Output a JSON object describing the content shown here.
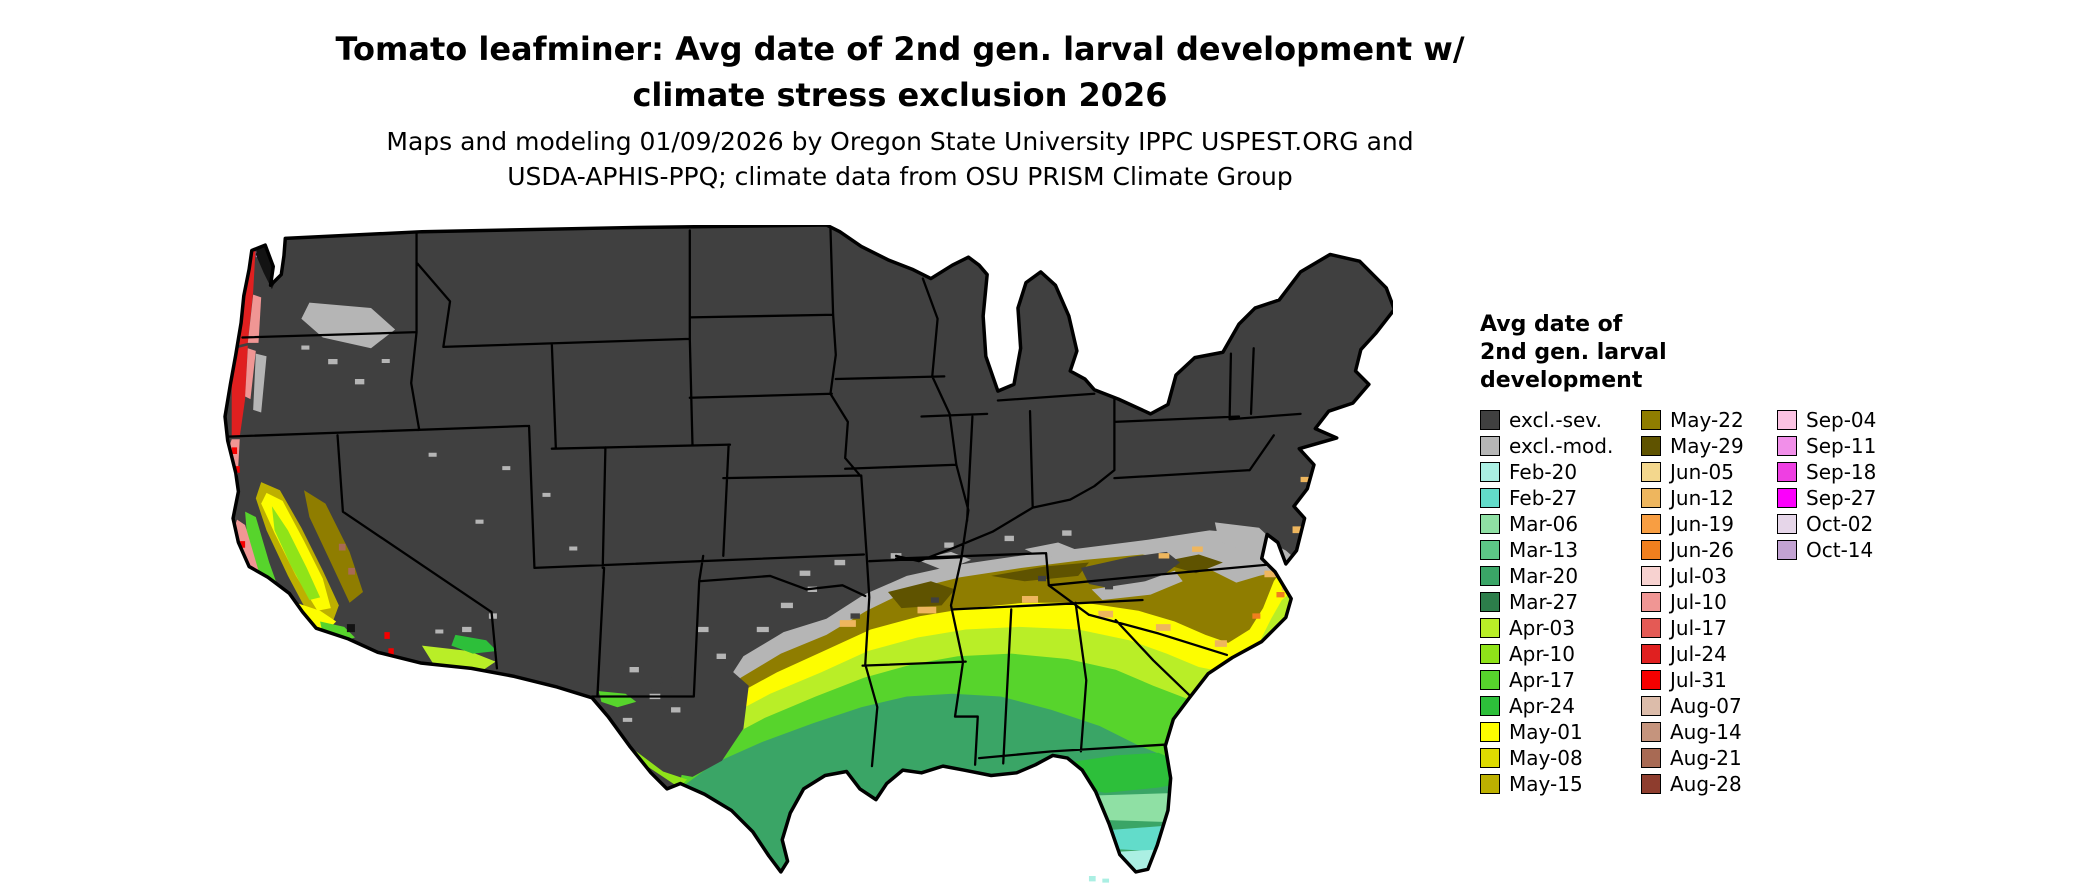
{
  "title": {
    "line1": "Tomato leafminer: Avg date of 2nd gen. larval development w/",
    "line2": "climate stress exclusion 2026"
  },
  "subtitle": {
    "line1": "Maps and modeling 01/09/2026 by Oregon State University IPPC USPEST.ORG and",
    "line2": "USDA-APHIS-PPQ; climate data from OSU PRISM Climate Group"
  },
  "legend": {
    "title_lines": [
      "Avg date of",
      "2nd gen. larval",
      "development"
    ],
    "columns": [
      [
        {
          "label": "excl.-sev.",
          "color": "#404040"
        },
        {
          "label": "excl.-mod.",
          "color": "#b5b5b5"
        },
        {
          "label": "Feb-20",
          "color": "#abefe3"
        },
        {
          "label": "Feb-27",
          "color": "#62dcca"
        },
        {
          "label": "Mar-06",
          "color": "#8fe0a4"
        },
        {
          "label": "Mar-13",
          "color": "#5cc786"
        },
        {
          "label": "Mar-20",
          "color": "#3aa566"
        },
        {
          "label": "Mar-27",
          "color": "#2c7d4a"
        },
        {
          "label": "Apr-03",
          "color": "#b9ee27"
        },
        {
          "label": "Apr-10",
          "color": "#8fe319"
        },
        {
          "label": "Apr-17",
          "color": "#57d42c"
        },
        {
          "label": "Apr-24",
          "color": "#2dbf3a"
        },
        {
          "label": "May-01",
          "color": "#fdfd00"
        },
        {
          "label": "May-08",
          "color": "#dedb00"
        },
        {
          "label": "May-15",
          "color": "#bdb000"
        }
      ],
      [
        {
          "label": "May-22",
          "color": "#8f7d00"
        },
        {
          "label": "May-29",
          "color": "#5f5300"
        },
        {
          "label": "Jun-05",
          "color": "#f3d78d"
        },
        {
          "label": "Jun-12",
          "color": "#eeb65e"
        },
        {
          "label": "Jun-19",
          "color": "#f89e42"
        },
        {
          "label": "Jun-26",
          "color": "#f07f1e"
        },
        {
          "label": "Jul-03",
          "color": "#f7d2d0"
        },
        {
          "label": "Jul-10",
          "color": "#f09694"
        },
        {
          "label": "Jul-17",
          "color": "#e45a55"
        },
        {
          "label": "Jul-24",
          "color": "#e02020"
        },
        {
          "label": "Jul-31",
          "color": "#f60000"
        },
        {
          "label": "Aug-07",
          "color": "#dcbcaa"
        },
        {
          "label": "Aug-14",
          "color": "#c5947d"
        },
        {
          "label": "Aug-21",
          "color": "#a86a54"
        },
        {
          "label": "Aug-28",
          "color": "#8e3d2e"
        }
      ],
      [
        {
          "label": "Sep-04",
          "color": "#fbc2e2"
        },
        {
          "label": "Sep-11",
          "color": "#f18fe9"
        },
        {
          "label": "Sep-18",
          "color": "#ee3fe2"
        },
        {
          "label": "Sep-27",
          "color": "#fb00fb"
        },
        {
          "label": "Oct-02",
          "color": "#e6d6e9"
        },
        {
          "label": "Oct-14",
          "color": "#c2a2d2"
        }
      ]
    ]
  },
  "map": {
    "border": "#000000",
    "water": "#131313",
    "background": "#ffffff"
  }
}
